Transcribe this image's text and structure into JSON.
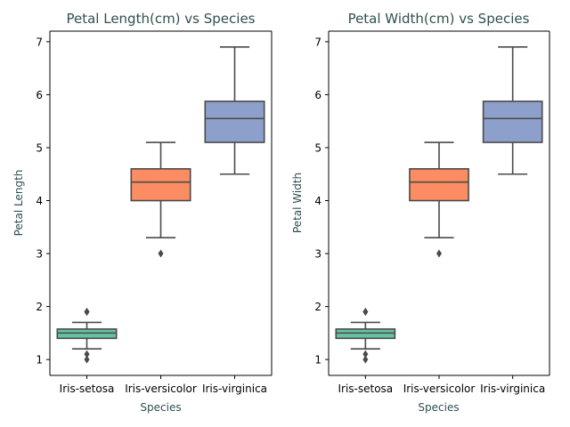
{
  "chart_data": [
    {
      "type": "box",
      "title": "Petal Length(cm) vs Species",
      "xlabel": "Species",
      "ylabel": "Petal Length",
      "categories": [
        "Iris-setosa",
        "Iris-versicolor",
        "Iris-virginica"
      ],
      "colors": [
        "#66c2a5",
        "#fc8d62",
        "#8da0cb"
      ],
      "ylim": [
        0.7,
        7.2
      ],
      "yticks": [
        1,
        2,
        3,
        4,
        5,
        6,
        7
      ],
      "boxes": [
        {
          "whisker_low": 1.2,
          "q1": 1.4,
          "median": 1.5,
          "q3": 1.575,
          "whisker_high": 1.7,
          "outliers": [
            1.9,
            1.9,
            1.1,
            1.0
          ]
        },
        {
          "whisker_low": 3.3,
          "q1": 4.0,
          "median": 4.35,
          "q3": 4.6,
          "whisker_high": 5.1,
          "outliers": [
            3.0
          ]
        },
        {
          "whisker_low": 4.5,
          "q1": 5.1,
          "median": 5.55,
          "q3": 5.875,
          "whisker_high": 6.9,
          "outliers": []
        }
      ]
    },
    {
      "type": "box",
      "title": "Petal Width(cm) vs Species",
      "xlabel": "Species",
      "ylabel": "Petal Width",
      "categories": [
        "Iris-setosa",
        "Iris-versicolor",
        "Iris-virginica"
      ],
      "colors": [
        "#66c2a5",
        "#fc8d62",
        "#8da0cb"
      ],
      "ylim": [
        0.7,
        7.2
      ],
      "yticks": [
        1,
        2,
        3,
        4,
        5,
        6,
        7
      ],
      "boxes": [
        {
          "whisker_low": 1.2,
          "q1": 1.4,
          "median": 1.5,
          "q3": 1.575,
          "whisker_high": 1.7,
          "outliers": [
            1.9,
            1.9,
            1.1,
            1.0
          ]
        },
        {
          "whisker_low": 3.3,
          "q1": 4.0,
          "median": 4.35,
          "q3": 4.6,
          "whisker_high": 5.1,
          "outliers": [
            3.0
          ]
        },
        {
          "whisker_low": 4.5,
          "q1": 5.1,
          "median": 5.55,
          "q3": 5.875,
          "whisker_high": 6.9,
          "outliers": []
        }
      ]
    }
  ]
}
